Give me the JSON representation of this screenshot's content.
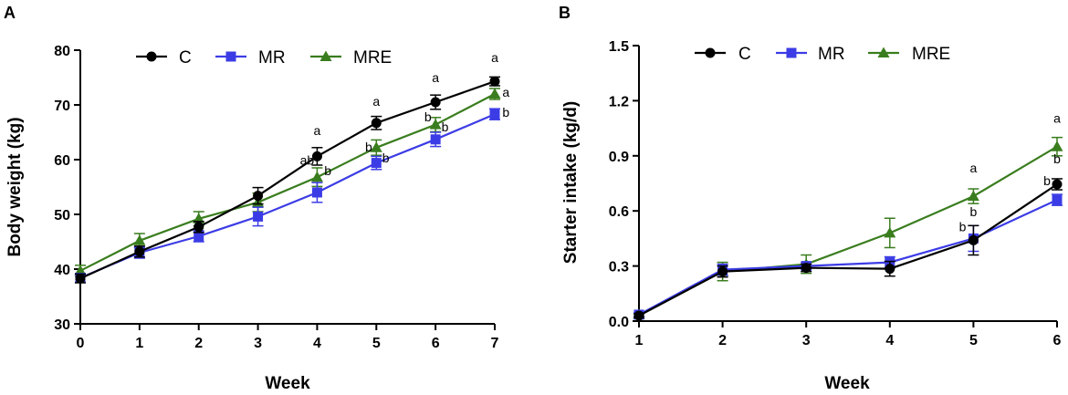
{
  "colors": {
    "C": "#000000",
    "MR": "#3c3ce6",
    "MRE": "#3a7d1e"
  },
  "chart_data": [
    {
      "type": "line",
      "panel": "A",
      "title": "",
      "xlabel": "Week",
      "ylabel": "Body weight (kg)",
      "x": [
        0,
        1,
        2,
        3,
        4,
        5,
        6,
        7
      ],
      "xlim": [
        0,
        7
      ],
      "ylim": [
        30,
        80
      ],
      "xticks": [
        "0",
        "1",
        "2",
        "3",
        "4",
        "5",
        "6",
        "7"
      ],
      "yticks": [
        30,
        40,
        50,
        60,
        70,
        80
      ],
      "legend": [
        "C",
        "MR",
        "MRE"
      ],
      "series": [
        {
          "name": "C",
          "marker": "circle",
          "values": [
            38.3,
            43.2,
            47.7,
            53.4,
            60.6,
            66.7,
            70.5,
            74.3
          ],
          "errors": [
            0.8,
            1.0,
            1.0,
            1.5,
            1.6,
            1.2,
            1.3,
            0.8
          ]
        },
        {
          "name": "MR",
          "marker": "square",
          "values": [
            38.4,
            43.0,
            46.0,
            49.6,
            54.0,
            59.4,
            63.7,
            68.3
          ],
          "errors": [
            0.8,
            1.0,
            1.0,
            1.7,
            1.8,
            1.2,
            1.3,
            1.0
          ]
        },
        {
          "name": "MRE",
          "marker": "triangle",
          "values": [
            39.7,
            45.2,
            49.2,
            52.2,
            56.8,
            62.2,
            66.4,
            72.0
          ],
          "errors": [
            1.0,
            1.3,
            1.3,
            1.7,
            1.7,
            1.4,
            1.3,
            1.0
          ]
        }
      ],
      "annotations": [
        {
          "text": "a",
          "x": 4,
          "y": 64.5,
          "align": "middle"
        },
        {
          "text": "ab",
          "x": 3.95,
          "y": 59.1,
          "align": "end"
        },
        {
          "text": "b",
          "x": 4.18,
          "y": 57.2,
          "align": "middle"
        },
        {
          "text": "a",
          "x": 5,
          "y": 69.8,
          "align": "middle"
        },
        {
          "text": "b",
          "x": 4.87,
          "y": 61.5,
          "align": "middle"
        },
        {
          "text": "b",
          "x": 5.16,
          "y": 59.5,
          "align": "middle"
        },
        {
          "text": "a",
          "x": 6,
          "y": 74.2,
          "align": "middle"
        },
        {
          "text": "b",
          "x": 5.87,
          "y": 67.0,
          "align": "middle"
        },
        {
          "text": "b",
          "x": 6.16,
          "y": 65.2,
          "align": "middle"
        },
        {
          "text": "a",
          "x": 7,
          "y": 77.8,
          "align": "middle"
        },
        {
          "text": "a",
          "x": 7.19,
          "y": 71.5,
          "align": "middle"
        },
        {
          "text": "b",
          "x": 7.19,
          "y": 67.8,
          "align": "middle"
        }
      ]
    },
    {
      "type": "line",
      "panel": "B",
      "title": "",
      "xlabel": "Week",
      "ylabel": "Starter intake (kg/d)",
      "x": [
        1,
        2,
        3,
        4,
        5,
        6
      ],
      "xlim": [
        1,
        6
      ],
      "ylim": [
        0,
        1.5
      ],
      "xticks": [
        "1",
        "2",
        "3",
        "4",
        "5",
        "6"
      ],
      "yticks": [
        "0.0",
        "0.3",
        "0.6",
        "0.9",
        "1.2",
        "1.5"
      ],
      "legend": [
        "C",
        "MR",
        "MRE"
      ],
      "series": [
        {
          "name": "C",
          "marker": "circle",
          "values": [
            0.03,
            0.27,
            0.29,
            0.285,
            0.44,
            0.745
          ],
          "errors": [
            0.01,
            0.03,
            0.02,
            0.04,
            0.08,
            0.03
          ]
        },
        {
          "name": "MR",
          "marker": "square",
          "values": [
            0.035,
            0.28,
            0.3,
            0.32,
            0.45,
            0.66
          ],
          "errors": [
            0.01,
            0.03,
            0.02,
            0.03,
            0.07,
            0.03
          ]
        },
        {
          "name": "MRE",
          "marker": "triangle",
          "values": [
            0.035,
            0.27,
            0.31,
            0.48,
            0.68,
            0.95
          ],
          "errors": [
            0.01,
            0.05,
            0.05,
            0.08,
            0.04,
            0.05
          ]
        }
      ],
      "annotations": [
        {
          "text": "a",
          "x": 5,
          "y": 0.81,
          "align": "middle"
        },
        {
          "text": "b",
          "x": 5,
          "y": 0.57,
          "align": "middle"
        },
        {
          "text": "b",
          "x": 4.87,
          "y": 0.49,
          "align": "middle"
        },
        {
          "text": "a",
          "x": 6,
          "y": 1.08,
          "align": "middle"
        },
        {
          "text": "b",
          "x": 6,
          "y": 0.86,
          "align": "middle"
        },
        {
          "text": "b",
          "x": 5.88,
          "y": 0.74,
          "align": "middle"
        }
      ]
    }
  ]
}
